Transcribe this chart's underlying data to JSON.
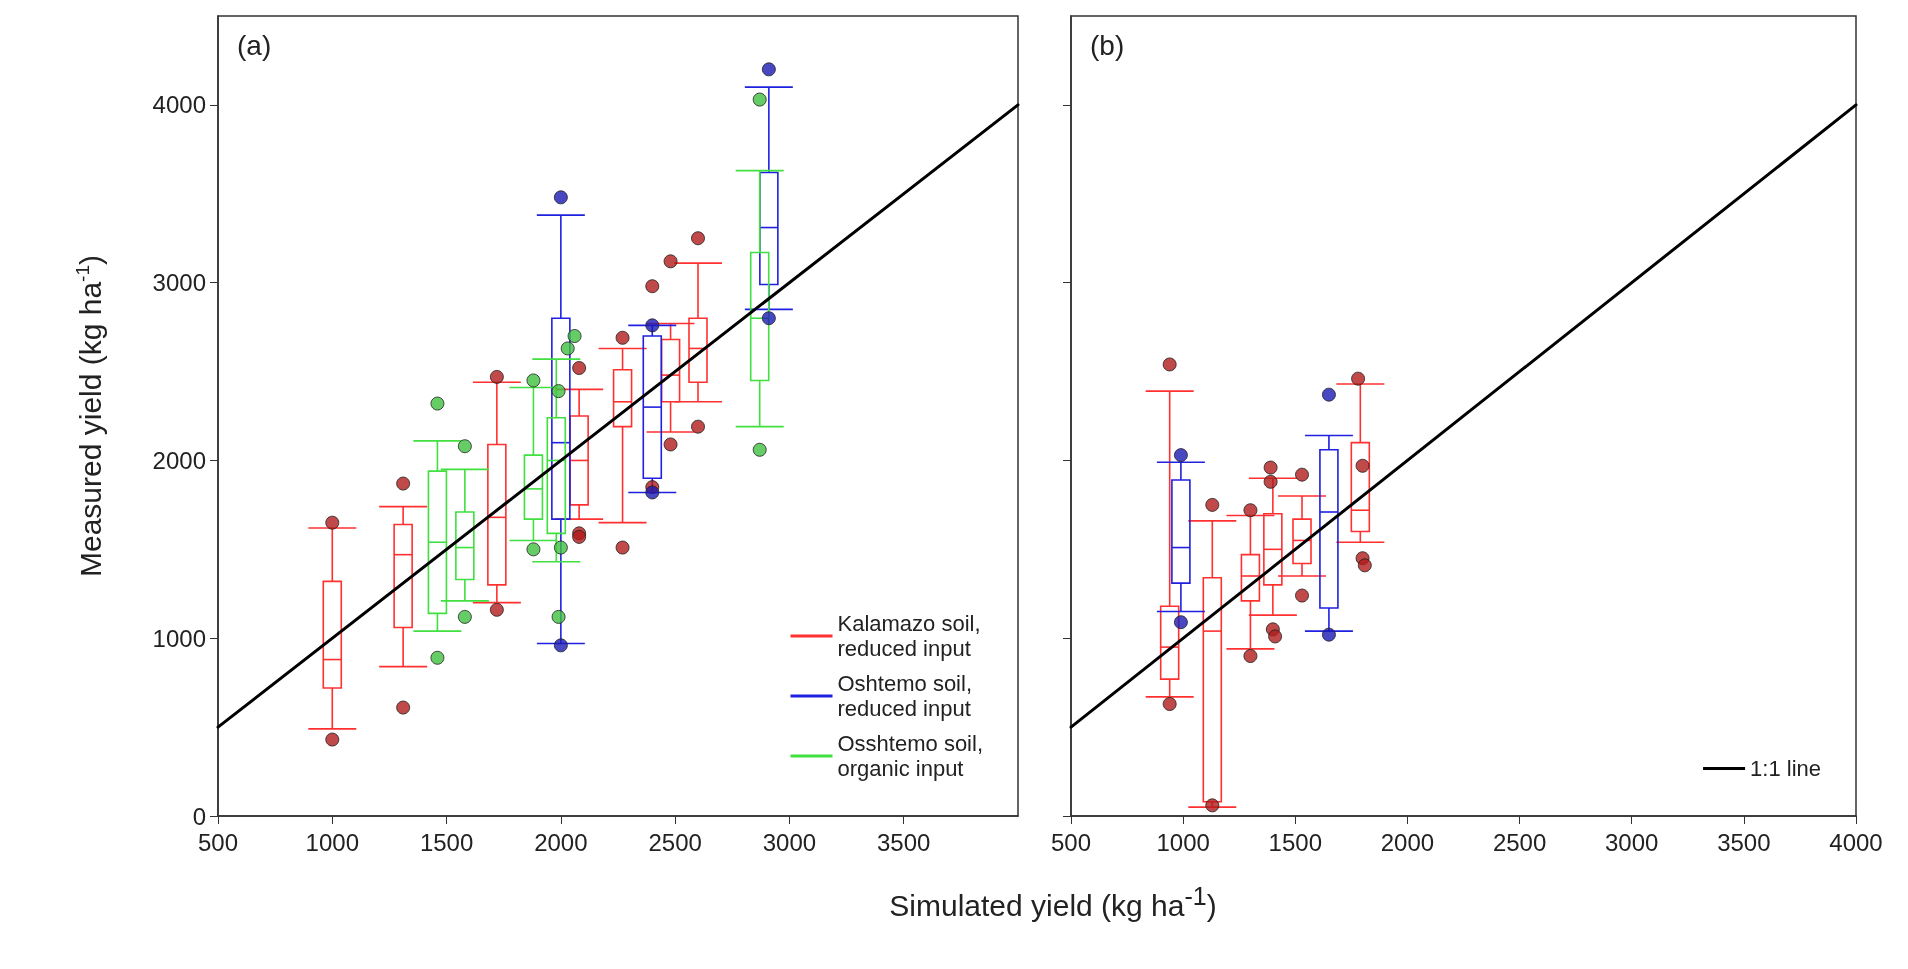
{
  "chart_data": [
    {
      "type": "box",
      "title": "(a)",
      "xlabel": "Simulated yield (kg ha$^{-1}$)",
      "ylabel": "Measured yield (kg ha$^{-1}$)",
      "xlim": [
        500,
        4000
      ],
      "xticks": [
        500,
        1000,
        1500,
        2000,
        2500,
        3000,
        3500
      ],
      "ylim": [
        0,
        4500
      ],
      "yticks": [
        0,
        1000,
        2000,
        3000,
        4000
      ],
      "legend": "bottom right",
      "series": [
        {
          "type": "box",
          "name": "Kalamazo soil, reduced input",
          "color": "#ff3030",
          "x": [
            1000,
            1310,
            1720,
            2080,
            2270,
            2480,
            2600
          ],
          "boxes": [
            {
              "low": 490,
              "q1": 720,
              "median": 880,
              "q3": 1320,
              "high": 1620
            },
            {
              "low": 840,
              "q1": 1060,
              "median": 1470,
              "q3": 1640,
              "high": 1740
            },
            {
              "low": 1200,
              "q1": 1300,
              "median": 1680,
              "q3": 2090,
              "high": 2440
            },
            {
              "low": 1670,
              "q1": 1750,
              "median": 2000,
              "q3": 2250,
              "high": 2400
            },
            {
              "low": 1650,
              "q1": 2190,
              "median": 2330,
              "q3": 2510,
              "high": 2630
            },
            {
              "low": 2160,
              "q1": 2330,
              "median": 2480,
              "q3": 2680,
              "high": 2770
            },
            {
              "low": 2330,
              "q1": 2440,
              "median": 2630,
              "q3": 2800,
              "high": 3110
            }
          ]
        },
        {
          "type": "box",
          "name": "Oshtemo soil, reduced input",
          "color": "#2020e0",
          "x": [
            2000,
            2400,
            2910
          ],
          "boxes": [
            {
              "low": 970,
              "q1": 1670,
              "median": 2100,
              "q3": 2800,
              "high": 3380
            },
            {
              "low": 1820,
              "q1": 1900,
              "median": 2300,
              "q3": 2700,
              "high": 2760
            },
            {
              "low": 2850,
              "q1": 2990,
              "median": 3310,
              "q3": 3620,
              "high": 4100
            }
          ]
        },
        {
          "type": "box",
          "name": "Osshtemo soil, organic input",
          "color": "#40e040",
          "x": [
            1460,
            1580,
            1880,
            1980,
            2870
          ],
          "boxes": [
            {
              "low": 1040,
              "q1": 1140,
              "median": 1540,
              "q3": 1940,
              "high": 2110
            },
            {
              "low": 1210,
              "q1": 1330,
              "median": 1510,
              "q3": 1710,
              "high": 1950
            },
            {
              "low": 1550,
              "q1": 1670,
              "median": 1840,
              "q3": 2030,
              "high": 2410
            },
            {
              "low": 1430,
              "q1": 1590,
              "median": 2000,
              "q3": 2240,
              "high": 2570
            },
            {
              "low": 2190,
              "q1": 2450,
              "median": 2800,
              "q3": 3170,
              "high": 3630
            }
          ]
        },
        {
          "type": "scatter",
          "marker": "circle",
          "color": "#b01c1c",
          "x": [
            1000,
            1000,
            1310,
            1310,
            1720,
            1720,
            2080,
            2080,
            2080,
            2270,
            2270,
            2400,
            2480,
            2480,
            2600,
            2600,
            2400
          ],
          "values": [
            1650,
            430,
            1870,
            610,
            2470,
            1160,
            2520,
            1590,
            1570,
            2690,
            1510,
            2980,
            3120,
            2090,
            3250,
            2190,
            1850
          ]
        },
        {
          "type": "scatter",
          "marker": "circle",
          "color": "#1a1ab4",
          "x": [
            2000,
            2000,
            2400,
            2400,
            2910,
            2910
          ],
          "values": [
            3480,
            960,
            2760,
            1820,
            4200,
            2800
          ]
        },
        {
          "type": "scatter",
          "marker": "circle",
          "color": "#40c040",
          "x": [
            1460,
            1460,
            1580,
            1580,
            1880,
            1880,
            2060,
            2030,
            1990,
            2000,
            1990,
            2870,
            2870
          ],
          "values": [
            2320,
            890,
            2080,
            1120,
            2450,
            1500,
            2700,
            2630,
            2390,
            1510,
            1120,
            4030,
            2060
          ]
        },
        {
          "type": "line",
          "color": "#000000",
          "x": [
            500,
            4000
          ],
          "values": [
            500,
            4000
          ]
        }
      ]
    },
    {
      "type": "box",
      "title": "(b)",
      "xlim": [
        500,
        4000
      ],
      "xticks": [
        500,
        1000,
        1500,
        2000,
        2500,
        3000,
        3500,
        4000
      ],
      "ylim": [
        0,
        4500
      ],
      "yticks": [
        0,
        1000,
        2000,
        3000,
        4000
      ],
      "tick_labels": "x",
      "legend": "bottom right",
      "series": [
        {
          "type": "box",
          "color": "#ff3030",
          "x": [
            940,
            1130,
            1300,
            1400,
            1530,
            1790
          ],
          "boxes": [
            {
              "low": 670,
              "q1": 770,
              "median": 950,
              "q3": 1180,
              "high": 2390
            },
            {
              "low": 50,
              "q1": 80,
              "median": 1040,
              "q3": 1340,
              "high": 1660
            },
            {
              "low": 940,
              "q1": 1210,
              "median": 1350,
              "q3": 1470,
              "high": 1690
            },
            {
              "low": 1130,
              "q1": 1300,
              "median": 1500,
              "q3": 1700,
              "high": 1900
            },
            {
              "low": 1350,
              "q1": 1420,
              "median": 1550,
              "q3": 1670,
              "high": 1800
            },
            {
              "low": 1540,
              "q1": 1600,
              "median": 1720,
              "q3": 2100,
              "high": 2430
            }
          ]
        },
        {
          "type": "box",
          "color": "#2020e0",
          "x": [
            990,
            1650
          ],
          "boxes": [
            {
              "low": 1150,
              "q1": 1310,
              "median": 1510,
              "q3": 1890,
              "high": 1990
            },
            {
              "low": 1040,
              "q1": 1170,
              "median": 1710,
              "q3": 2060,
              "high": 2140
            }
          ]
        },
        {
          "type": "scatter",
          "marker": "circle",
          "color": "#b01c1c",
          "x": [
            940,
            940,
            1130,
            1130,
            1300,
            1300,
            1390,
            1390,
            1400,
            1410,
            1530,
            1530,
            1780,
            1800,
            1800,
            1810
          ],
          "values": [
            2540,
            630,
            1750,
            60,
            1720,
            900,
            1960,
            1880,
            1050,
            1010,
            1920,
            1240,
            2460,
            1970,
            1450,
            1410
          ]
        },
        {
          "type": "scatter",
          "marker": "circle",
          "color": "#1a1ab4",
          "x": [
            990,
            990,
            1650,
            1650
          ],
          "values": [
            2030,
            1090,
            2370,
            1020
          ]
        },
        {
          "type": "line",
          "name": "1:1 line",
          "color": "#000000",
          "x": [
            500,
            4000
          ],
          "values": [
            500,
            4000
          ]
        }
      ]
    }
  ]
}
